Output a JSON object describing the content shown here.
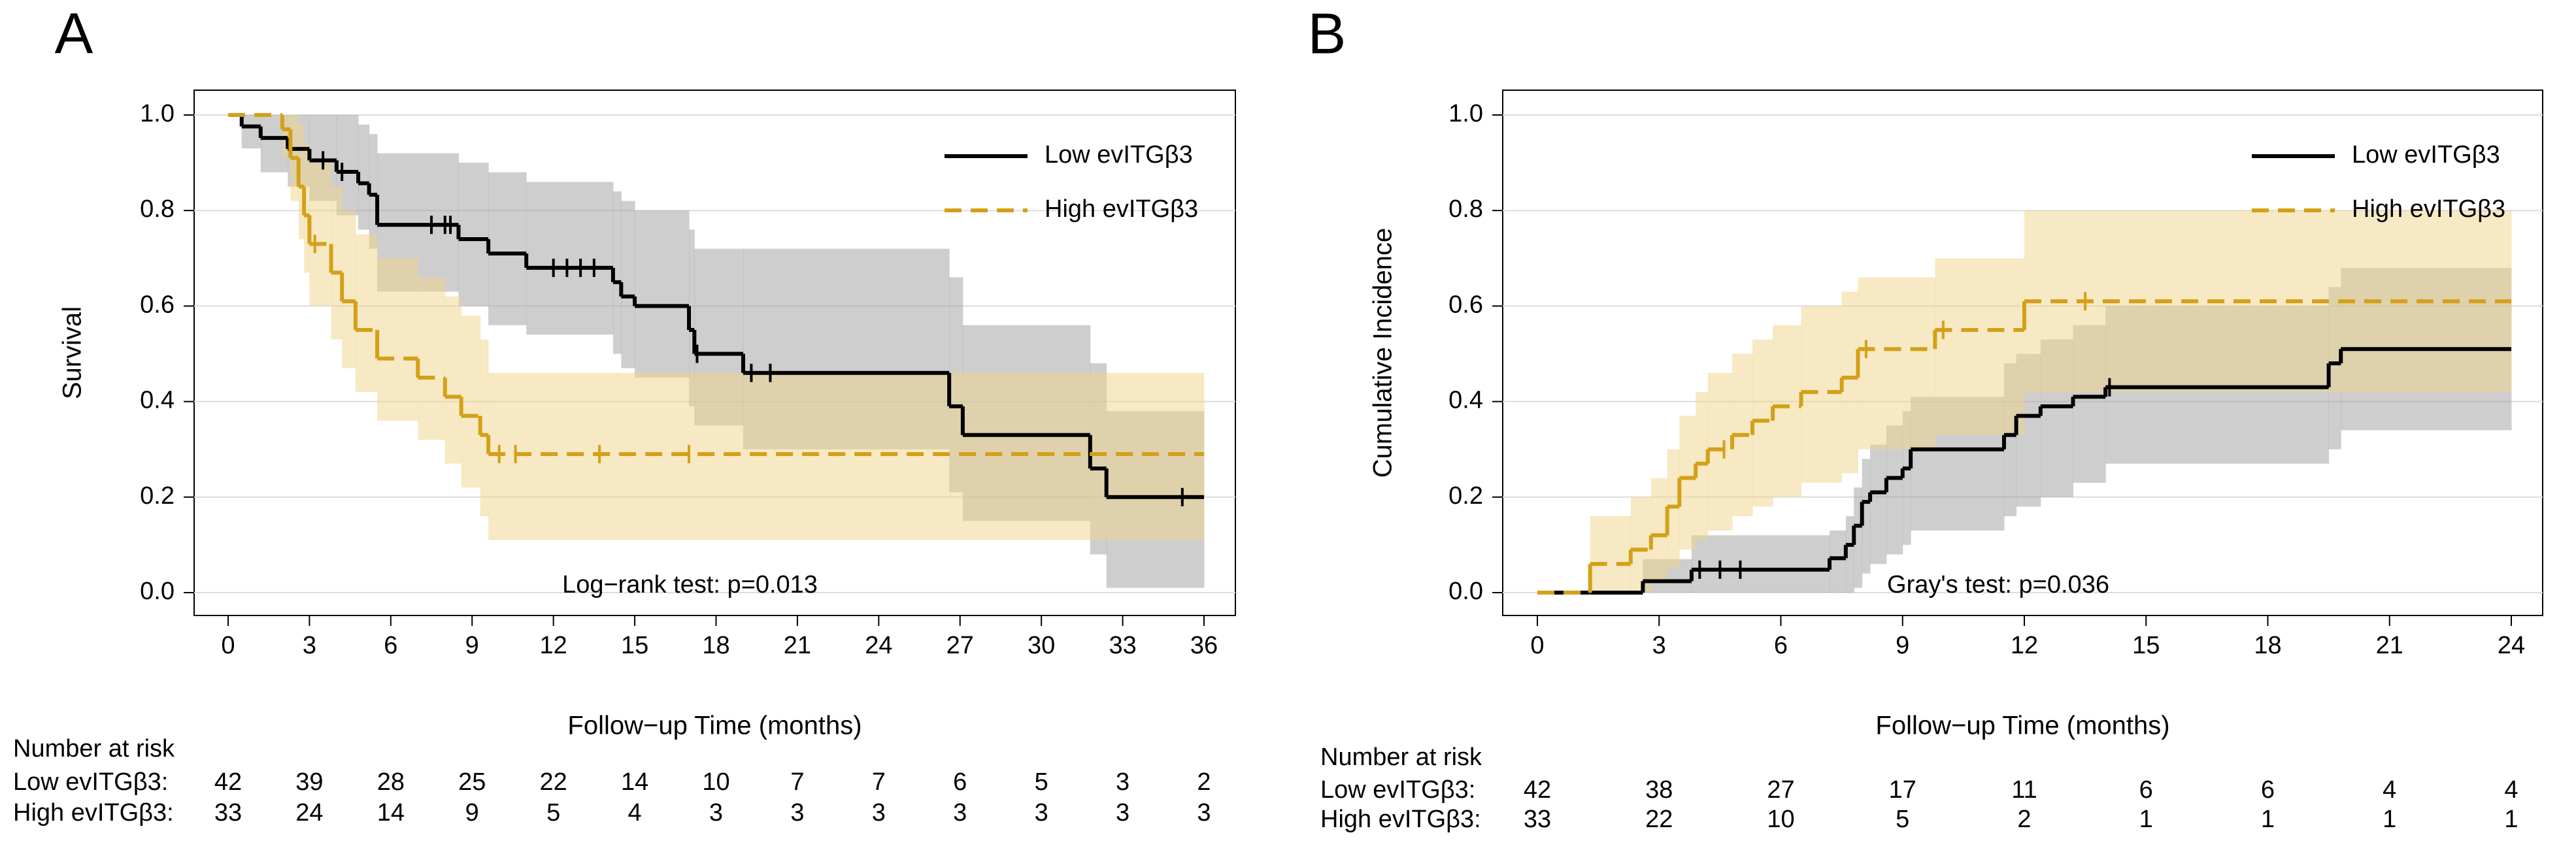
{
  "chart_data": [
    {
      "type": "line",
      "panel_label": "A",
      "x_label": "Follow−up Time (months)",
      "y_label": "Survival",
      "annotation": "Log−rank test: p=0.013",
      "xlim": [
        0,
        36
      ],
      "xticks": [
        0,
        3,
        6,
        9,
        12,
        15,
        18,
        21,
        24,
        27,
        30,
        33,
        36
      ],
      "ylim": [
        0,
        1
      ],
      "yticks": [
        {
          "value": 0,
          "label": "0.0"
        },
        0.2,
        0.4,
        0.6,
        0.8,
        {
          "value": 1,
          "label": "1.0"
        }
      ],
      "grid": true,
      "legend": "top-right",
      "series": [
        {
          "name": "Low evITGβ3",
          "color": "#000000",
          "band_color": "#9e9e9e",
          "line_style": "solid",
          "x": [
            0,
            0.5,
            1.2,
            2.2,
            3,
            4,
            4.8,
            5.2,
            5.5,
            8.5,
            9.6,
            11,
            14.2,
            14.5,
            15,
            17,
            17.2,
            19,
            26.6,
            27.1,
            31.8,
            32.4,
            36
          ],
          "values": [
            1,
            0.976,
            0.952,
            0.929,
            0.905,
            0.881,
            0.857,
            0.833,
            0.77,
            0.74,
            0.71,
            0.68,
            0.65,
            0.62,
            0.6,
            0.55,
            0.5,
            0.46,
            0.39,
            0.33,
            0.26,
            0.2,
            0.2
          ],
          "lower": [
            1,
            0.93,
            0.88,
            0.85,
            0.82,
            0.79,
            0.76,
            0.72,
            0.63,
            0.6,
            0.56,
            0.54,
            0.5,
            0.47,
            0.45,
            0.39,
            0.35,
            0.3,
            0.21,
            0.15,
            0.08,
            0.01,
            0.01
          ],
          "upper": [
            1,
            1,
            1,
            1,
            1,
            1,
            0.98,
            0.96,
            0.92,
            0.9,
            0.88,
            0.86,
            0.84,
            0.82,
            0.8,
            0.76,
            0.72,
            0.72,
            0.66,
            0.56,
            0.48,
            0.38,
            0.38
          ],
          "censor_x": [
            3.5,
            4.2,
            7.5,
            8,
            8.2,
            12,
            12.5,
            13,
            13.5,
            17.3,
            19.3,
            20,
            35.2
          ],
          "censor_values": [
            0.905,
            0.881,
            0.77,
            0.77,
            0.77,
            0.68,
            0.68,
            0.68,
            0.68,
            0.5,
            0.46,
            0.46,
            0.2
          ]
        },
        {
          "name": "High evITGβ3",
          "color": "#d4a017",
          "band_color": "#f0d48a",
          "line_style": "dashed",
          "x": [
            0,
            2,
            2.3,
            2.6,
            2.8,
            3,
            3.8,
            4.2,
            4.7,
            5.5,
            7,
            8,
            8.6,
            9.3,
            9.6,
            36
          ],
          "values": [
            1,
            0.97,
            0.91,
            0.85,
            0.79,
            0.73,
            0.67,
            0.61,
            0.55,
            0.49,
            0.45,
            0.41,
            0.37,
            0.33,
            0.29,
            0.29
          ],
          "lower": [
            1,
            0.91,
            0.82,
            0.74,
            0.67,
            0.6,
            0.53,
            0.47,
            0.42,
            0.36,
            0.32,
            0.27,
            0.22,
            0.16,
            0.11,
            0.11
          ],
          "upper": [
            1,
            1,
            1,
            0.98,
            0.94,
            0.9,
            0.85,
            0.8,
            0.75,
            0.7,
            0.66,
            0.62,
            0.58,
            0.53,
            0.46,
            0.46
          ],
          "censor_x": [
            3.2,
            10,
            10.6,
            13.7,
            17
          ],
          "censor_values": [
            0.73,
            0.29,
            0.29,
            0.29,
            0.29
          ]
        }
      ],
      "risk_table": {
        "title": "Number at risk",
        "rows": [
          {
            "label": "Low evITGβ3:",
            "counts": [
              42,
              39,
              28,
              25,
              22,
              14,
              10,
              7,
              7,
              6,
              5,
              3,
              2
            ]
          },
          {
            "label": "High evITGβ3:",
            "counts": [
              33,
              24,
              14,
              9,
              5,
              4,
              3,
              3,
              3,
              3,
              3,
              3,
              3
            ]
          }
        ]
      }
    },
    {
      "type": "line",
      "panel_label": "B",
      "x_label": "Follow−up Time (months)",
      "y_label": "Cumulative Incidence",
      "annotation": "Gray's test: p=0.036",
      "xlim": [
        0,
        24
      ],
      "xticks": [
        0,
        3,
        6,
        9,
        12,
        15,
        18,
        21,
        24
      ],
      "ylim": [
        0,
        1
      ],
      "yticks": [
        {
          "value": 0,
          "label": "0.0"
        },
        0.2,
        0.4,
        0.6,
        0.8,
        {
          "value": 1,
          "label": "1.0"
        }
      ],
      "grid": true,
      "legend": "top-right",
      "series": [
        {
          "name": "Low evITGβ3",
          "color": "#000000",
          "band_color": "#9e9e9e",
          "line_style": "solid",
          "x": [
            0,
            2.6,
            3.8,
            7.2,
            7.6,
            7.8,
            8,
            8.2,
            8.6,
            9,
            9.2,
            11.5,
            11.8,
            12.4,
            13.2,
            14,
            19.5,
            19.8,
            24
          ],
          "values": [
            0,
            0.024,
            0.048,
            0.072,
            0.1,
            0.14,
            0.19,
            0.21,
            0.24,
            0.26,
            0.3,
            0.33,
            0.37,
            0.39,
            0.41,
            0.43,
            0.48,
            0.51,
            0.51
          ],
          "lower": [
            0,
            0,
            0,
            0,
            0,
            0.01,
            0.04,
            0.06,
            0.08,
            0.1,
            0.13,
            0.16,
            0.18,
            0.2,
            0.23,
            0.27,
            0.3,
            0.34,
            0.34
          ],
          "upper": [
            0,
            0.07,
            0.12,
            0.13,
            0.16,
            0.22,
            0.28,
            0.31,
            0.35,
            0.38,
            0.41,
            0.48,
            0.5,
            0.53,
            0.56,
            0.6,
            0.64,
            0.68,
            0.68
          ],
          "censor_x": [
            4,
            4.5,
            5,
            14.1
          ],
          "censor_values": [
            0.048,
            0.048,
            0.048,
            0.43
          ]
        },
        {
          "name": "High evITGβ3",
          "color": "#d4a017",
          "band_color": "#f0d48a",
          "line_style": "dashed",
          "x": [
            0,
            1.3,
            2.3,
            2.8,
            3.2,
            3.5,
            3.9,
            4.2,
            4.8,
            5.3,
            5.8,
            6.5,
            7.5,
            7.9,
            9.8,
            12,
            24
          ],
          "values": [
            0,
            0.06,
            0.09,
            0.12,
            0.18,
            0.24,
            0.27,
            0.3,
            0.33,
            0.36,
            0.39,
            0.42,
            0.45,
            0.51,
            0.55,
            0.61,
            0.61
          ],
          "lower": [
            0,
            0,
            0,
            0.02,
            0.05,
            0.09,
            0.11,
            0.13,
            0.16,
            0.18,
            0.2,
            0.23,
            0.25,
            0.3,
            0.33,
            0.42,
            0.42
          ],
          "upper": [
            0,
            0.16,
            0.2,
            0.24,
            0.3,
            0.37,
            0.42,
            0.46,
            0.5,
            0.53,
            0.56,
            0.6,
            0.63,
            0.66,
            0.7,
            0.8,
            0.8
          ],
          "censor_x": [
            4.6,
            8.1,
            10,
            13.5
          ],
          "censor_values": [
            0.3,
            0.51,
            0.55,
            0.61
          ]
        }
      ],
      "risk_table": {
        "title": "Number at risk",
        "rows": [
          {
            "label": "Low evITGβ3:",
            "counts": [
              42,
              38,
              27,
              17,
              11,
              6,
              6,
              4,
              4
            ]
          },
          {
            "label": "High evITGβ3:",
            "counts": [
              33,
              22,
              10,
              5,
              2,
              1,
              1,
              1,
              1
            ]
          }
        ]
      }
    }
  ]
}
